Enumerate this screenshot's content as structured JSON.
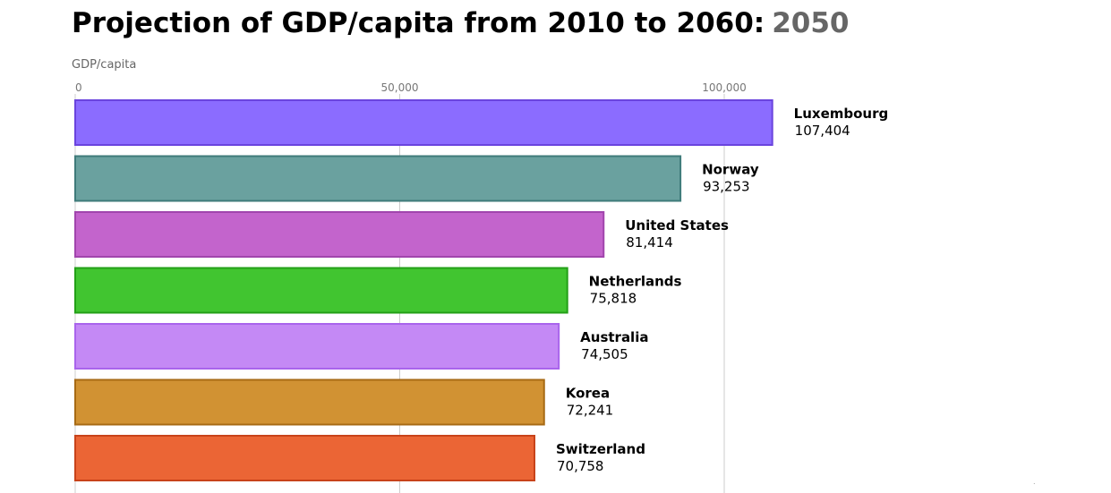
{
  "title": {
    "main": "Projection of GDP/capita from 2010 to 2060:",
    "year": "2050"
  },
  "chart_data": {
    "type": "bar",
    "orientation": "horizontal",
    "title": "Projection of GDP/capita from 2010 to 2060:",
    "subtitle": "2050",
    "xlabel": "GDP/capita",
    "ylabel": "",
    "xlim": [
      0,
      120000
    ],
    "x_ticks": [
      0,
      50000,
      100000
    ],
    "x_tick_labels": [
      "0",
      "50,000",
      "100,000"
    ],
    "grid": true,
    "categories": [
      "Luxembourg",
      "Norway",
      "United States",
      "Netherlands",
      "Australia",
      "Korea",
      "Switzerland"
    ],
    "values": [
      107404,
      93253,
      81414,
      75818,
      74505,
      72241,
      70758
    ],
    "value_labels": [
      "107,404",
      "93,253",
      "81,414",
      "75,818",
      "74,505",
      "72,241",
      "70,758"
    ],
    "colors": [
      "#8b6cff",
      "#6aa19f",
      "#c364cc",
      "#41c530",
      "#c489f5",
      "#d19233",
      "#eb6535"
    ],
    "stroke_colors": [
      "#6a44de",
      "#3f7b7a",
      "#a145ad",
      "#23a017",
      "#a964ec",
      "#a76a14",
      "#c8431a"
    ]
  }
}
